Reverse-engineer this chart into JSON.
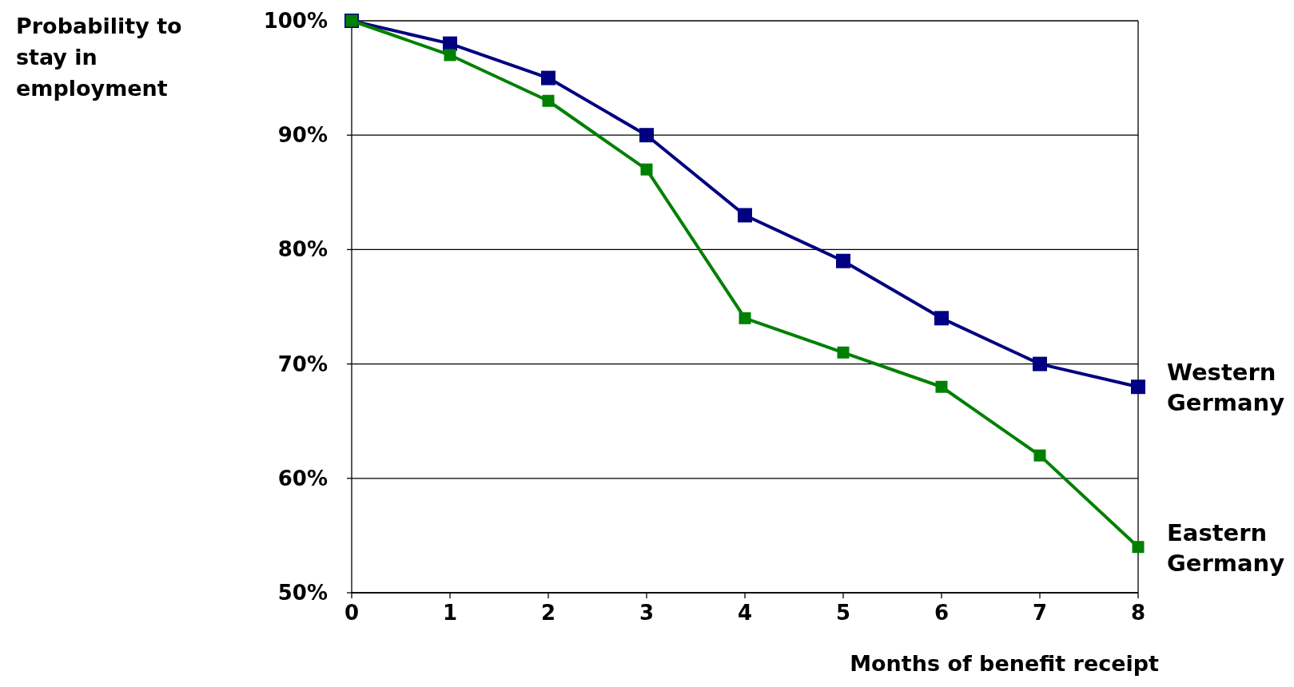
{
  "chart_data": {
    "type": "line",
    "xlabel": "Months of benefit receipt",
    "ylabel": "Probability to stay in employment",
    "categories": [
      "0",
      "1",
      "2",
      "3",
      "4",
      "5",
      "6",
      "7",
      "8"
    ],
    "series": [
      {
        "name": "Western Germany",
        "color": "#000080",
        "values": [
          100,
          98,
          95,
          90,
          83,
          79,
          74,
          70,
          68
        ]
      },
      {
        "name": "Eastern Germany",
        "color": "#008000",
        "values": [
          100,
          97,
          93,
          87,
          74,
          71,
          68,
          62,
          54
        ]
      }
    ],
    "ylim": [
      50,
      100
    ],
    "yticks": [
      {
        "value": 50,
        "label": "50%"
      },
      {
        "value": 60,
        "label": "60%"
      },
      {
        "value": 70,
        "label": "70%"
      },
      {
        "value": 80,
        "label": "80%"
      },
      {
        "value": 90,
        "label": "90%"
      },
      {
        "value": 100,
        "label": "100%"
      }
    ],
    "grid": "y",
    "marker": "square",
    "line_style": "solid"
  }
}
